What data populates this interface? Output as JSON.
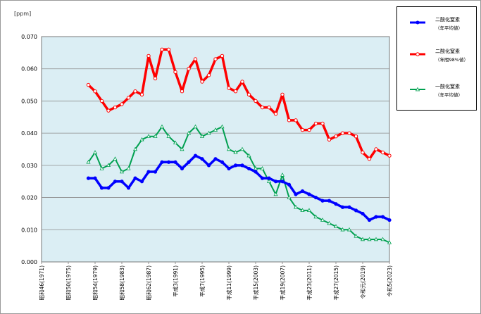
{
  "chart_data": {
    "type": "line",
    "ylabel": "[ppm]",
    "ylim": [
      0,
      0.07
    ],
    "yticks": [
      "0.000",
      "0.010",
      "0.020",
      "0.030",
      "0.040",
      "0.050",
      "0.060",
      "0.070"
    ],
    "x_start_year": 1971,
    "x_end_year": 2023,
    "xtick_labels": [
      {
        "year": 1971,
        "label": "昭和46(1971)"
      },
      {
        "year": 1975,
        "label": "昭和50(1975)"
      },
      {
        "year": 1979,
        "label": "昭和54(1979)"
      },
      {
        "year": 1983,
        "label": "昭和58(1983)"
      },
      {
        "year": 1987,
        "label": "昭和62(1987)"
      },
      {
        "year": 1991,
        "label": "平成3(1991)"
      },
      {
        "year": 1995,
        "label": "平成7(1995)"
      },
      {
        "year": 1999,
        "label": "平成11(1999)"
      },
      {
        "year": 2003,
        "label": "平成15(2003)"
      },
      {
        "year": 2007,
        "label": "平成19(2007)"
      },
      {
        "year": 2011,
        "label": "平成23(2011)"
      },
      {
        "year": 2015,
        "label": "平成27(2015)"
      },
      {
        "year": 2019,
        "label": "令和元(2019)"
      },
      {
        "year": 2023,
        "label": "令和5(2023)"
      }
    ],
    "grid": true,
    "legend_position": "right",
    "plot_background": "#dbeef4",
    "series": [
      {
        "name": "二酸化窒素",
        "subtitle": "（年平均値）",
        "color": "#0000ff",
        "marker": "filled-circle",
        "x": [
          1978,
          1979,
          1980,
          1981,
          1982,
          1983,
          1984,
          1985,
          1986,
          1987,
          1988,
          1989,
          1990,
          1991,
          1992,
          1993,
          1994,
          1995,
          1996,
          1997,
          1998,
          1999,
          2000,
          2001,
          2002,
          2003,
          2004,
          2005,
          2006,
          2007,
          2008,
          2009,
          2010,
          2011,
          2012,
          2013,
          2014,
          2015,
          2016,
          2017,
          2018,
          2019,
          2020,
          2021,
          2022,
          2023
        ],
        "values": [
          0.026,
          0.026,
          0.023,
          0.023,
          0.025,
          0.025,
          0.023,
          0.026,
          0.025,
          0.028,
          0.028,
          0.031,
          0.031,
          0.031,
          0.029,
          0.031,
          0.033,
          0.032,
          0.03,
          0.032,
          0.031,
          0.029,
          0.03,
          0.03,
          0.029,
          0.028,
          0.026,
          0.026,
          0.025,
          0.025,
          0.024,
          0.021,
          0.022,
          0.021,
          0.02,
          0.019,
          0.019,
          0.018,
          0.017,
          0.017,
          0.016,
          0.015,
          0.013,
          0.014,
          0.014,
          0.013
        ]
      },
      {
        "name": "二酸化窒素",
        "subtitle": "（年間98%値）",
        "color": "#ff0000",
        "marker": "open-circle",
        "x": [
          1978,
          1979,
          1980,
          1981,
          1982,
          1983,
          1984,
          1985,
          1986,
          1987,
          1988,
          1989,
          1990,
          1991,
          1992,
          1993,
          1994,
          1995,
          1996,
          1997,
          1998,
          1999,
          2000,
          2001,
          2002,
          2003,
          2004,
          2005,
          2006,
          2007,
          2008,
          2009,
          2010,
          2011,
          2012,
          2013,
          2014,
          2015,
          2016,
          2017,
          2018,
          2019,
          2020,
          2021,
          2022,
          2023
        ],
        "values": [
          0.055,
          0.053,
          0.05,
          0.047,
          0.048,
          0.049,
          0.051,
          0.053,
          0.052,
          0.064,
          0.057,
          0.066,
          0.066,
          0.059,
          0.053,
          0.06,
          0.063,
          0.056,
          0.058,
          0.063,
          0.064,
          0.054,
          0.053,
          0.056,
          0.052,
          0.05,
          0.048,
          0.048,
          0.046,
          0.052,
          0.044,
          0.044,
          0.041,
          0.041,
          0.043,
          0.043,
          0.038,
          0.039,
          0.04,
          0.04,
          0.039,
          0.034,
          0.032,
          0.035,
          0.034,
          0.033
        ]
      },
      {
        "name": "一酸化窒素",
        "subtitle": "（年平均値）",
        "color": "#00a050",
        "marker": "open-triangle",
        "x": [
          1978,
          1979,
          1980,
          1981,
          1982,
          1983,
          1984,
          1985,
          1986,
          1987,
          1988,
          1989,
          1990,
          1991,
          1992,
          1993,
          1994,
          1995,
          1996,
          1997,
          1998,
          1999,
          2000,
          2001,
          2002,
          2003,
          2004,
          2005,
          2006,
          2007,
          2008,
          2009,
          2010,
          2011,
          2012,
          2013,
          2014,
          2015,
          2016,
          2017,
          2018,
          2019,
          2020,
          2021,
          2022,
          2023
        ],
        "values": [
          0.031,
          0.034,
          0.029,
          0.03,
          0.032,
          0.028,
          0.029,
          0.035,
          0.038,
          0.039,
          0.039,
          0.042,
          0.039,
          0.037,
          0.035,
          0.04,
          0.042,
          0.039,
          0.04,
          0.041,
          0.042,
          0.035,
          0.034,
          0.035,
          0.033,
          0.029,
          0.029,
          0.025,
          0.021,
          0.027,
          0.02,
          0.017,
          0.016,
          0.016,
          0.014,
          0.013,
          0.012,
          0.011,
          0.01,
          0.01,
          0.008,
          0.007,
          0.007,
          0.007,
          0.007,
          0.006
        ]
      }
    ]
  }
}
